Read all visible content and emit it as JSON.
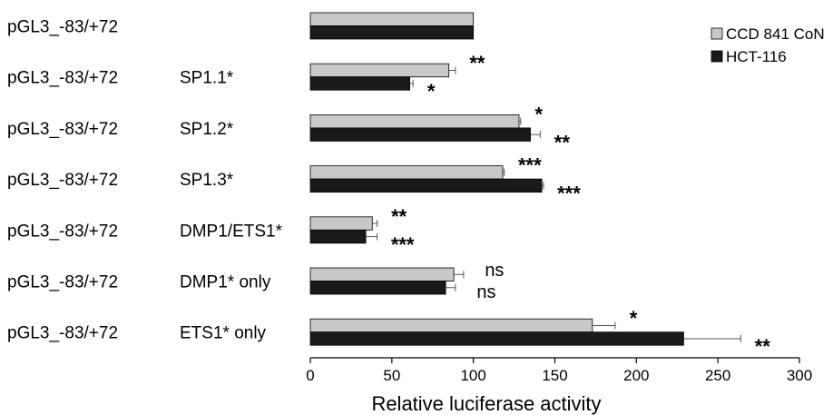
{
  "chart_data": {
    "type": "bar",
    "orientation": "horizontal",
    "xlabel": "Relative luciferase activity",
    "xlim": [
      0,
      300
    ],
    "xticks": [
      0,
      50,
      100,
      150,
      200,
      250,
      300
    ],
    "grid": false,
    "legend_position": "top-right",
    "categories": [
      {
        "construct": "pGL3_-83/+72",
        "mutation": ""
      },
      {
        "construct": "pGL3_-83/+72",
        "mutation": "SP1.1*"
      },
      {
        "construct": "pGL3_-83/+72",
        "mutation": "SP1.2*"
      },
      {
        "construct": "pGL3_-83/+72",
        "mutation": "SP1.3*"
      },
      {
        "construct": "pGL3_-83/+72",
        "mutation": "DMP1/ETS1*"
      },
      {
        "construct": "pGL3_-83/+72",
        "mutation": "DMP1* only"
      },
      {
        "construct": "pGL3_-83/+72",
        "mutation": "ETS1* only"
      }
    ],
    "series": [
      {
        "name": "CCD 841 CoN",
        "color": "#c8c8c8",
        "values": [
          100,
          85,
          128,
          118,
          38,
          88,
          173
        ],
        "errors": [
          0,
          4,
          1,
          1,
          3,
          6,
          14
        ],
        "significance": [
          "",
          "**",
          "*",
          "***",
          "**",
          "ns",
          "*"
        ]
      },
      {
        "name": "HCT-116",
        "color": "#1a1a1a",
        "values": [
          100,
          61,
          135,
          142,
          34,
          83,
          229
        ],
        "errors": [
          0,
          2,
          6,
          1,
          7,
          6,
          35
        ],
        "significance": [
          "",
          "*",
          "**",
          "***",
          "***",
          "ns",
          "**"
        ]
      }
    ]
  }
}
